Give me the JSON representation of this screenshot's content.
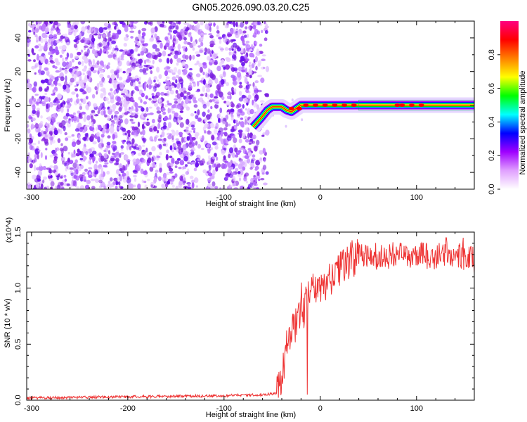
{
  "title": "GN05.2026.090.03.20.C25",
  "chart_data": [
    {
      "type": "heatmap",
      "xlabel": "Height of straight line (km)",
      "ylabel": "Frequency (Hz)",
      "xlim": [
        -305,
        160
      ],
      "ylim": [
        -50,
        50
      ],
      "xticks": [
        -300,
        -200,
        -100,
        0,
        100
      ],
      "yticks": [
        -40,
        -20,
        0,
        20,
        40
      ],
      "colorbar": {
        "label": "Normalized spectral amplitude",
        "range": [
          0,
          1
        ],
        "ticks": [
          0.0,
          0.2,
          0.4,
          0.6,
          0.8
        ],
        "colors": [
          "#ffffff",
          "#e0a0ff",
          "#a000ff",
          "#0000ff",
          "#00ffff",
          "#00ff00",
          "#ffff00",
          "#ff8000",
          "#ff0000",
          "#ff0080"
        ]
      },
      "noise_region_x": [
        -305,
        -62
      ],
      "signal_ridge": {
        "x": [
          -70,
          -62,
          -55,
          -50,
          -45,
          -40,
          -35,
          -30,
          -25,
          -20,
          0,
          50,
          100,
          160
        ],
        "y": [
          -13,
          -8,
          -3,
          -1,
          -1,
          -1,
          -3,
          -4,
          -2,
          0,
          0,
          0,
          0,
          0
        ]
      },
      "grid": false
    },
    {
      "type": "line",
      "xlabel": "Height of straight line (km)",
      "ylabel": "SNR (10 * v/v)",
      "y_multiplier_label": "(x10^4)",
      "xlim": [
        -305,
        160
      ],
      "ylim": [
        0,
        1.5
      ],
      "xticks": [
        -300,
        -200,
        -100,
        0,
        100
      ],
      "yticks": [
        0.0,
        0.5,
        1.0,
        1.5
      ],
      "series": [
        {
          "color": "#ee3333",
          "x": [
            -305,
            -250,
            -200,
            -150,
            -100,
            -60,
            -45,
            -40,
            -35,
            -30,
            -25,
            -20,
            -15,
            -10,
            -5,
            0,
            5,
            10,
            20,
            30,
            40,
            50,
            60,
            80,
            100,
            120,
            140,
            160
          ],
          "y": [
            0.02,
            0.025,
            0.03,
            0.035,
            0.04,
            0.05,
            0.06,
            0.2,
            0.45,
            0.6,
            0.65,
            0.75,
            0.85,
            0.95,
            0.95,
            0.98,
            1.05,
            1.1,
            1.2,
            1.25,
            1.3,
            1.3,
            1.28,
            1.3,
            1.3,
            1.28,
            1.3,
            1.25
          ]
        }
      ],
      "grid": false
    }
  ]
}
